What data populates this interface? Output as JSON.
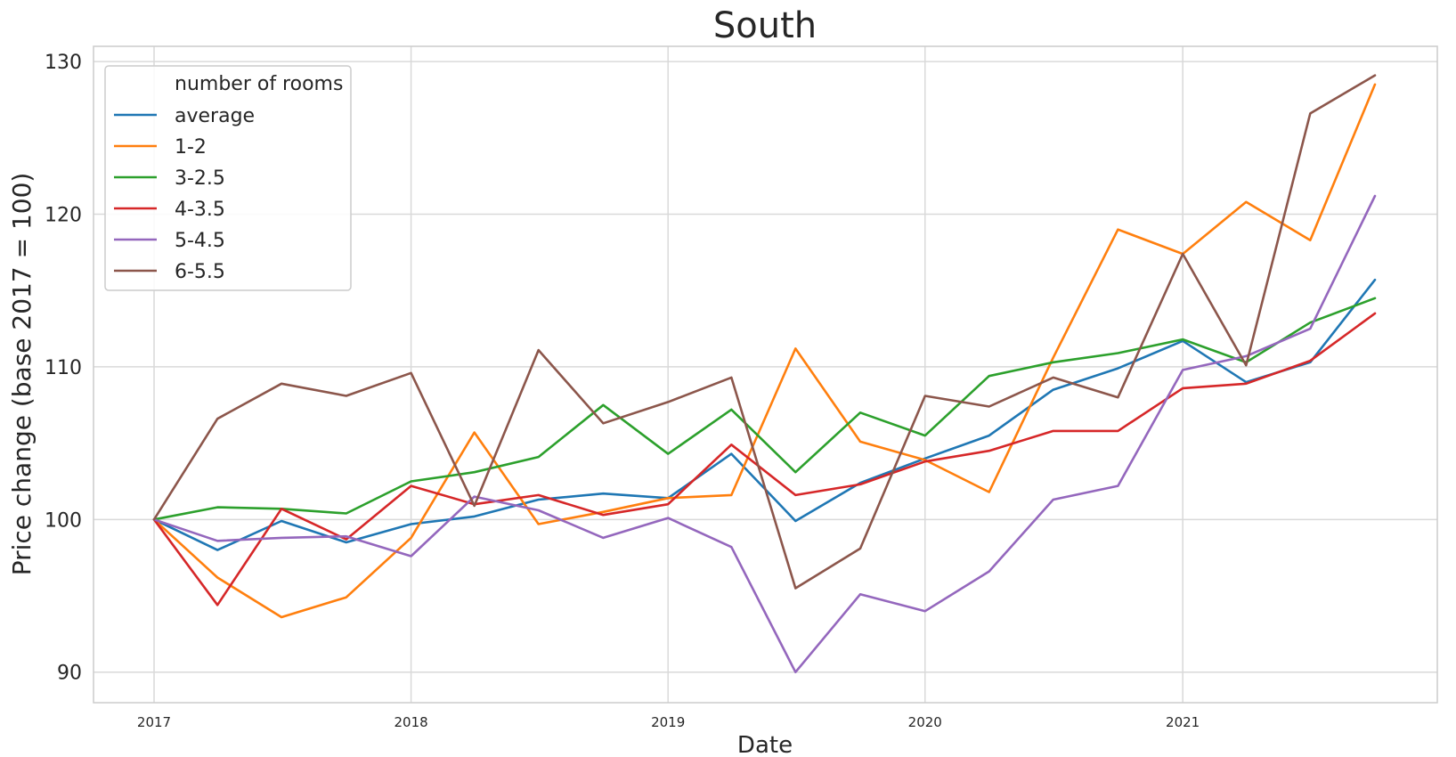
{
  "chart_data": {
    "type": "line",
    "title": "South",
    "xlabel": "Date",
    "ylabel": "Price change (base 2017 = 100)",
    "x_ticks": [
      "2017",
      "2018",
      "2019",
      "2020",
      "2021"
    ],
    "y_ticks": [
      "90",
      "100",
      "110",
      "120",
      "130"
    ],
    "ylim": [
      88,
      131
    ],
    "grid": true,
    "legend_title": "number of rooms",
    "legend_position": "top-left",
    "x": [
      "2017-01-01",
      "2017-04-01",
      "2017-07-01",
      "2017-10-01",
      "2018-01-01",
      "2018-04-01",
      "2018-07-01",
      "2018-10-01",
      "2019-01-01",
      "2019-04-01",
      "2019-07-01",
      "2019-10-01",
      "2020-01-01",
      "2020-04-01",
      "2020-07-01",
      "2020-10-01",
      "2021-01-01",
      "2021-04-01",
      "2021-07-01",
      "2021-10-01"
    ],
    "series": [
      {
        "name": "average",
        "color": "#1f77b4",
        "values": [
          100,
          98.0,
          99.9,
          98.5,
          99.7,
          100.2,
          101.3,
          101.7,
          101.4,
          104.3,
          99.9,
          102.4,
          104.0,
          105.5,
          108.5,
          109.9,
          111.7,
          109.0,
          110.3,
          115.7
        ]
      },
      {
        "name": "1-2",
        "color": "#ff7f0e",
        "values": [
          100,
          96.2,
          93.6,
          94.9,
          98.8,
          105.7,
          99.7,
          100.5,
          101.4,
          101.6,
          111.2,
          105.1,
          103.9,
          101.8,
          110.6,
          119.0,
          117.4,
          120.8,
          118.3,
          128.5
        ]
      },
      {
        "name": "3-2.5",
        "color": "#2ca02c",
        "values": [
          100,
          100.8,
          100.7,
          100.4,
          102.5,
          103.1,
          104.1,
          107.5,
          104.3,
          107.2,
          103.1,
          107.0,
          105.5,
          109.4,
          110.3,
          110.9,
          111.8,
          110.3,
          112.9,
          114.5
        ]
      },
      {
        "name": "4-3.5",
        "color": "#d62728",
        "values": [
          100,
          94.4,
          100.7,
          98.7,
          102.2,
          101.0,
          101.6,
          100.3,
          101.0,
          104.9,
          101.6,
          102.3,
          103.8,
          104.5,
          105.8,
          105.8,
          108.6,
          108.9,
          110.4,
          113.5
        ]
      },
      {
        "name": "5-4.5",
        "color": "#9467bd",
        "values": [
          100,
          98.6,
          98.8,
          98.9,
          97.6,
          101.5,
          100.6,
          98.8,
          100.1,
          98.2,
          90.0,
          95.1,
          94.0,
          96.6,
          101.3,
          102.2,
          109.8,
          110.7,
          112.5,
          121.2
        ]
      },
      {
        "name": "6-5.5",
        "color": "#8c564b",
        "values": [
          100,
          106.6,
          108.9,
          108.1,
          109.6,
          100.9,
          111.1,
          106.3,
          107.7,
          109.3,
          95.5,
          98.1,
          108.1,
          107.4,
          109.3,
          108.0,
          117.4,
          110.1,
          126.6,
          129.1
        ]
      }
    ]
  }
}
